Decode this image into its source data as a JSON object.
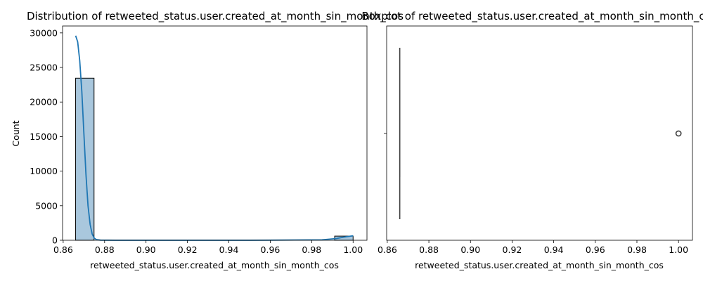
{
  "chart_data": [
    {
      "type": "histogram",
      "title": "Distribution of retweeted_status.user.created_at_month_sin_month_cos",
      "xlabel": "retweeted_status.user.created_at_month_sin_month_cos",
      "ylabel": "Count",
      "xlim": [
        0.8597,
        1.0067
      ],
      "ylim": [
        0,
        31000
      ],
      "xticks": [
        "0.86",
        "0.88",
        "0.90",
        "0.92",
        "0.94",
        "0.96",
        "0.98",
        "1.00"
      ],
      "yticks": [
        "0",
        "5000",
        "10000",
        "15000",
        "20000",
        "25000",
        "30000"
      ],
      "bar_color": "#a9c7dd",
      "bins": [
        {
          "x0": 0.866,
          "x1": 0.8749,
          "count": 23450
        },
        {
          "x0": 0.8749,
          "x1": 0.8839,
          "count": 0
        },
        {
          "x0": 0.8839,
          "x1": 0.8928,
          "count": 0
        },
        {
          "x0": 0.8928,
          "x1": 0.9018,
          "count": 0
        },
        {
          "x0": 0.9018,
          "x1": 0.9107,
          "count": 0
        },
        {
          "x0": 0.9107,
          "x1": 0.9196,
          "count": 0
        },
        {
          "x0": 0.9196,
          "x1": 0.9286,
          "count": 0
        },
        {
          "x0": 0.9286,
          "x1": 0.9375,
          "count": 0
        },
        {
          "x0": 0.9375,
          "x1": 0.9464,
          "count": 0
        },
        {
          "x0": 0.9464,
          "x1": 0.9554,
          "count": 0
        },
        {
          "x0": 0.9554,
          "x1": 0.9643,
          "count": 0
        },
        {
          "x0": 0.9643,
          "x1": 0.9732,
          "count": 0
        },
        {
          "x0": 0.9732,
          "x1": 0.9822,
          "count": 0
        },
        {
          "x0": 0.9822,
          "x1": 0.9911,
          "count": 0
        },
        {
          "x0": 0.9911,
          "x1": 1.0,
          "count": 600
        }
      ],
      "kde": {
        "color": "#1f77b4",
        "points": [
          [
            0.866,
            29600
          ],
          [
            0.867,
            28700
          ],
          [
            0.868,
            26000
          ],
          [
            0.869,
            21500
          ],
          [
            0.87,
            15500
          ],
          [
            0.871,
            9500
          ],
          [
            0.872,
            5000
          ],
          [
            0.873,
            2300
          ],
          [
            0.874,
            900
          ],
          [
            0.875,
            300
          ],
          [
            0.876,
            100
          ],
          [
            0.878,
            20
          ],
          [
            0.885,
            0
          ],
          [
            0.95,
            0
          ],
          [
            0.985,
            60
          ],
          [
            0.992,
            250
          ],
          [
            0.996,
            480
          ],
          [
            1.0,
            650
          ]
        ]
      }
    },
    {
      "type": "boxplot",
      "title": "Boxplot of retweeted_status.user.created_at_month_sin_month_cos",
      "xlabel": "retweeted_status.user.created_at_month_sin_month_cos",
      "xlim": [
        0.8597,
        1.0067
      ],
      "xticks": [
        "0.86",
        "0.88",
        "0.90",
        "0.92",
        "0.94",
        "0.96",
        "0.98",
        "1.00"
      ],
      "box": {
        "whislo": 0.866,
        "q1": 0.866,
        "med": 0.866,
        "q3": 0.866,
        "whishi": 0.866
      },
      "outliers": [
        1.0
      ],
      "color": "#1f77b4"
    }
  ]
}
